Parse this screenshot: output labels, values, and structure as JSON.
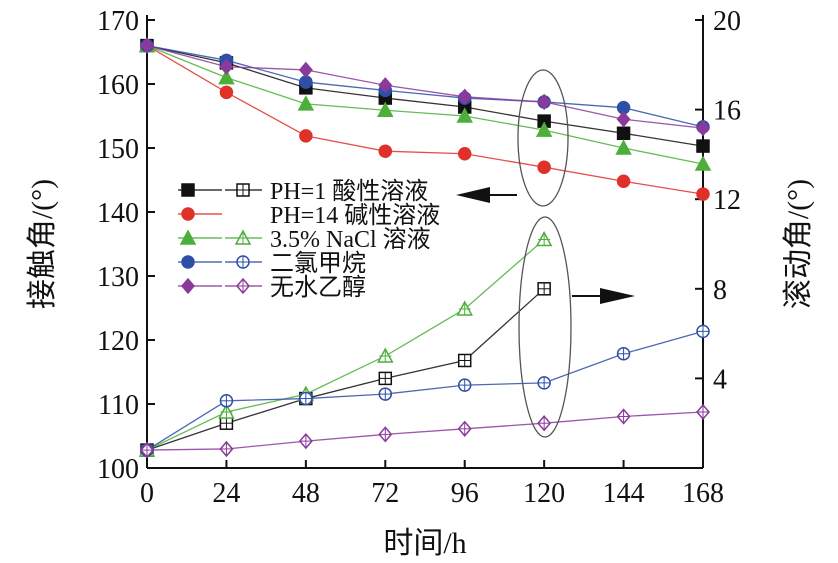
{
  "chart_data": {
    "type": "line",
    "xlabel": "时间/h",
    "ylabel_left": "接触角/(°)",
    "ylabel_right": "滚动角/(°)",
    "x": [
      0,
      24,
      48,
      72,
      96,
      120,
      144,
      168
    ],
    "x_ticks": [
      "0",
      "24",
      "48",
      "72",
      "96",
      "120",
      "144",
      "168"
    ],
    "ylim_left": [
      100,
      170
    ],
    "y_ticks_left": [
      "100",
      "110",
      "120",
      "130",
      "140",
      "150",
      "160",
      "170"
    ],
    "ylim_right": [
      0,
      20
    ],
    "y_ticks_right": [
      "4",
      "8",
      "12",
      "16",
      "20"
    ],
    "grid": false,
    "legend_position": "center-left",
    "series": [
      {
        "name": "PH=1 酸性溶液",
        "color": "#111111",
        "marker": "square",
        "contact_angle": [
          166,
          163.3,
          159.4,
          157.8,
          156.4,
          154.2,
          152.3,
          150.3
        ],
        "sliding_angle": [
          0.8,
          2.0,
          3.1,
          4.0,
          4.8,
          8.0,
          null,
          null
        ]
      },
      {
        "name": "PH=14 碱性溶液",
        "color": "#e0302a",
        "marker": "circle",
        "contact_angle": [
          166,
          158.7,
          151.9,
          149.5,
          149.1,
          147.0,
          144.8,
          142.8
        ],
        "sliding_angle": []
      },
      {
        "name": "3.5% NaCl 溶液",
        "color": "#4caf3a",
        "marker": "triangle",
        "contact_angle": [
          166,
          161.0,
          156.9,
          155.9,
          155.0,
          152.8,
          150.0,
          147.5
        ],
        "sliding_angle": [
          0.8,
          2.5,
          3.3,
          5.0,
          7.1,
          10.2,
          null,
          null
        ]
      },
      {
        "name": "二氯甲烷",
        "color": "#2e4fa8",
        "marker": "circle",
        "contact_angle": [
          166,
          163.7,
          160.3,
          159.0,
          157.8,
          157.2,
          156.3,
          153.3
        ],
        "sliding_angle": [
          0.8,
          3.0,
          3.1,
          3.3,
          3.7,
          3.8,
          5.1,
          6.1
        ]
      },
      {
        "name": "无水乙醇",
        "color": "#8a3a9a",
        "marker": "diamond",
        "contact_angle": [
          166,
          162.7,
          162.2,
          159.8,
          158.0,
          157.2,
          154.5,
          153.1
        ],
        "sliding_angle": [
          0.8,
          0.85,
          1.2,
          1.5,
          1.75,
          2.0,
          2.3,
          2.5
        ]
      }
    ]
  }
}
